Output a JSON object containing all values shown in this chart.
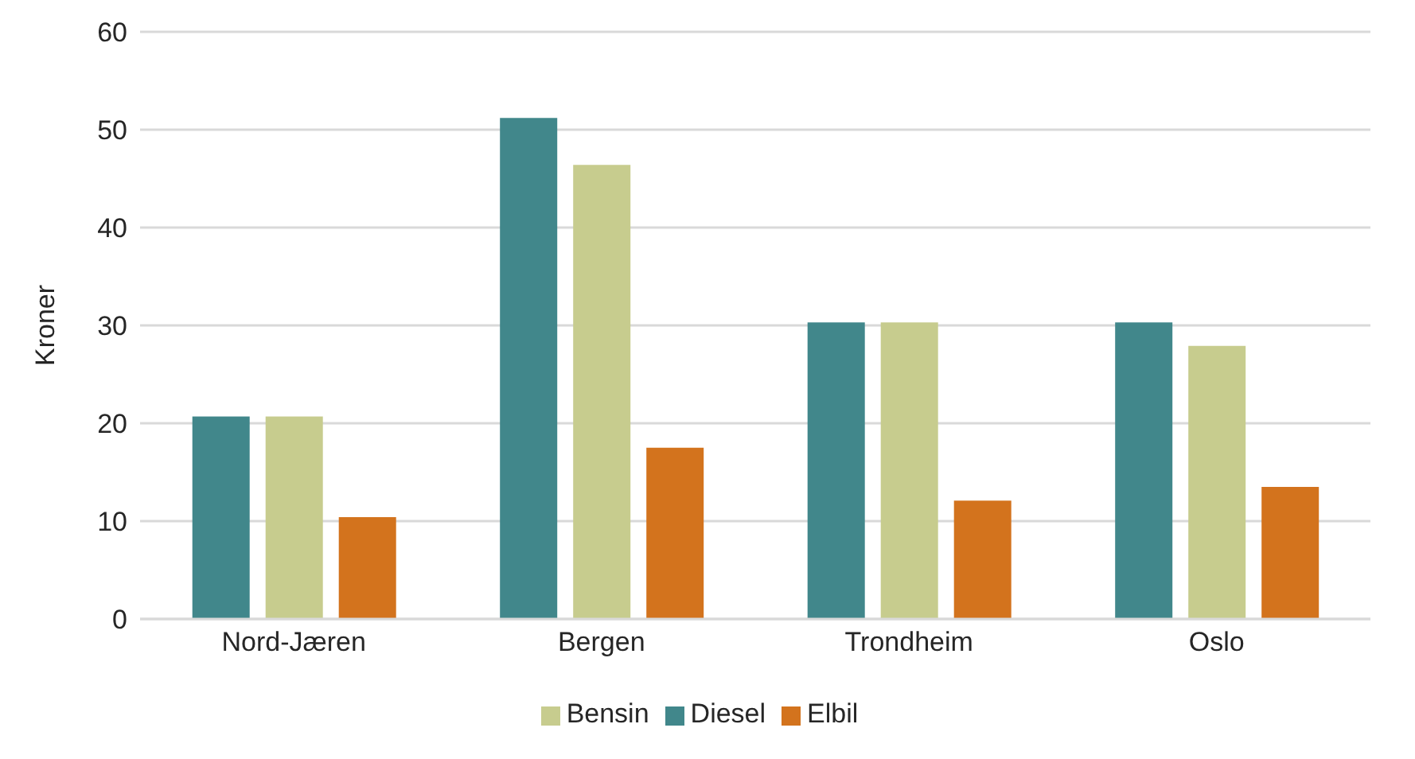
{
  "chart_data": {
    "type": "bar",
    "ylabel": "Kroner",
    "categories": [
      "Nord-Jæren",
      "Bergen",
      "Trondheim",
      "Oslo"
    ],
    "series": [
      {
        "name": "Diesel",
        "color": "#41878b",
        "values": [
          20.7,
          51.2,
          30.3,
          30.3
        ]
      },
      {
        "name": "Bensin",
        "color": "#c7cc8e",
        "values": [
          20.7,
          46.4,
          30.3,
          27.9
        ]
      },
      {
        "name": "Elbil",
        "color": "#d3731d",
        "values": [
          10.4,
          17.5,
          12.1,
          13.5
        ]
      }
    ],
    "ylim": [
      0,
      60
    ],
    "yticks": [
      0,
      10,
      20,
      30,
      40,
      50,
      60
    ],
    "grid": "y",
    "legend": "bottom"
  }
}
